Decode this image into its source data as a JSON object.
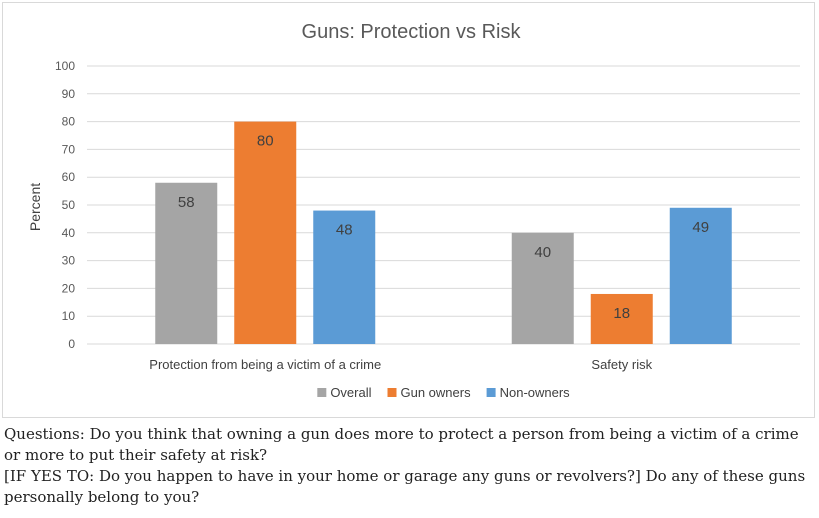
{
  "chart_data": {
    "type": "bar",
    "title": "Guns:  Protection vs Risk",
    "xlabel": "",
    "ylabel": "Percent",
    "ylim": [
      0,
      100
    ],
    "yticks": [
      0,
      10,
      20,
      30,
      40,
      50,
      60,
      70,
      80,
      90,
      100
    ],
    "grid": true,
    "legend_position": "bottom",
    "categories": [
      "Protection from being a victim of a crime",
      "Safety risk"
    ],
    "series": [
      {
        "name": "Overall",
        "color": "#a5a5a5",
        "values": [
          58,
          40
        ]
      },
      {
        "name": "Gun owners",
        "color": "#ed7d31",
        "values": [
          80,
          18
        ]
      },
      {
        "name": "Non-owners",
        "color": "#5b9bd5",
        "values": [
          48,
          49
        ]
      }
    ]
  },
  "caption": {
    "line1": "Questions: Do you think that owning a gun does more to protect a person from being a victim of a crime or more to put their safety at risk?",
    "line2": "[IF YES TO: Do you happen to have in your home or garage any guns or revolvers?] Do any of these guns personally belong to you?"
  }
}
